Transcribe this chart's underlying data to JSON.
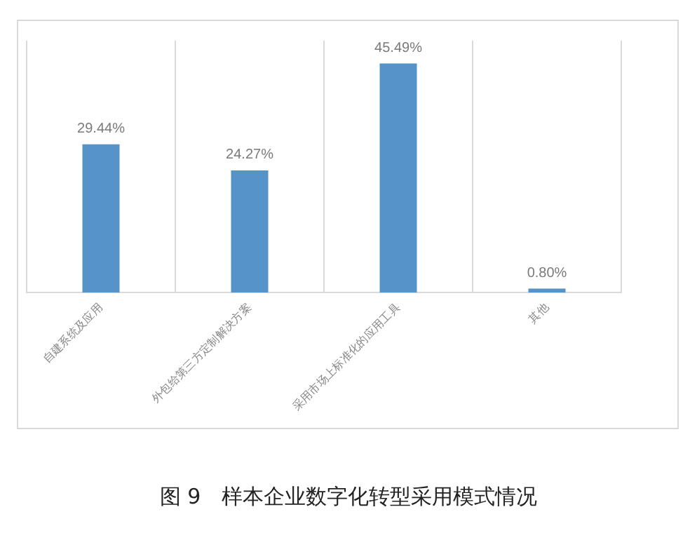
{
  "chart_data": {
    "type": "bar",
    "title": "图 9　样本企业数字化转型采用模式情况",
    "categories": [
      "自建系统及应用",
      "外包给第三方定制解决方案",
      "采用市场上标准化的应用工具",
      "其他"
    ],
    "values": [
      29.44,
      24.27,
      45.49,
      0.8
    ],
    "value_labels": [
      "29.44%",
      "24.27%",
      "45.49%",
      "0.80%"
    ],
    "color": "#5593c8",
    "grid": "x"
  }
}
